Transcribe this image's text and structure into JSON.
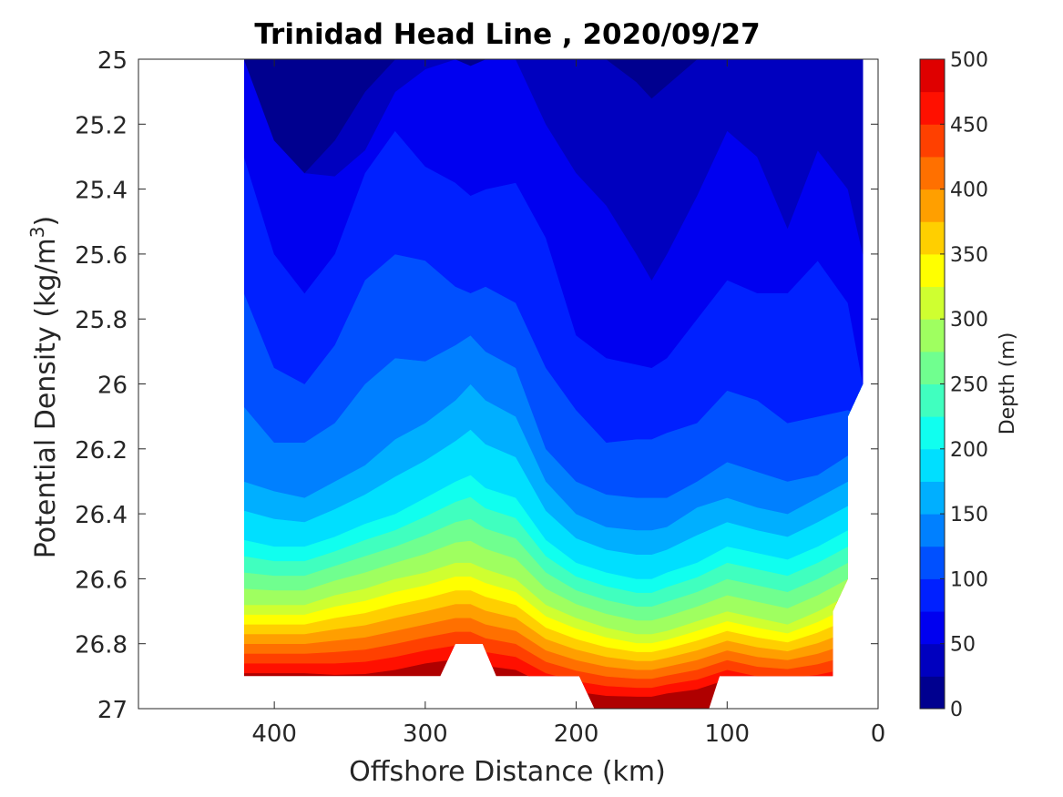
{
  "chart_data": {
    "type": "heatmap",
    "subtype": "filled-contour",
    "title": "Trinidad Head Line , 2020/09/27",
    "xlabel": "Offshore Distance (km)",
    "ylabel_main": "Potential Density (kg/m",
    "ylabel_sup": "3",
    "ylabel_close": ")",
    "colorbar_label": "Depth (m)",
    "xlim": [
      490,
      0
    ],
    "x_reversed": true,
    "ylim": [
      25,
      27
    ],
    "y_reversed": true,
    "clim": [
      0,
      500
    ],
    "contour_interval": 25,
    "x_ticks": [
      "400",
      "300",
      "200",
      "100",
      "0"
    ],
    "x_tick_values": [
      400,
      300,
      200,
      100,
      0
    ],
    "y_ticks": [
      "25",
      "25.2",
      "25.4",
      "25.6",
      "25.8",
      "26",
      "26.2",
      "26.4",
      "26.6",
      "26.8",
      "27"
    ],
    "y_tick_values": [
      25,
      25.2,
      25.4,
      25.6,
      25.8,
      26,
      26.2,
      26.4,
      26.6,
      26.8,
      27
    ],
    "colorbar_ticks": [
      "0",
      "50",
      "100",
      "150",
      "200",
      "250",
      "300",
      "350",
      "400",
      "450",
      "500"
    ],
    "colorbar_tick_values": [
      0,
      50,
      100,
      150,
      200,
      250,
      300,
      350,
      400,
      450,
      500
    ],
    "colormap": [
      "#00008f",
      "#0000bf",
      "#0000f0",
      "#0020ff",
      "#0050ff",
      "#0080ff",
      "#00afff",
      "#00dfff",
      "#10ffef",
      "#40ffbf",
      "#70ff8f",
      "#9fff60",
      "#cfff30",
      "#ffff00",
      "#ffcf00",
      "#ff9f00",
      "#ff7000",
      "#ff4000",
      "#ff1000",
      "#df0000",
      "#af0000"
    ],
    "grid": false,
    "box": true,
    "isopycnal_depth_contours": {
      "x_km": [
        420,
        400,
        380,
        360,
        340,
        320,
        300,
        280,
        270,
        260,
        240,
        220,
        200,
        180,
        160,
        150,
        140,
        120,
        100,
        80,
        60,
        40,
        20,
        10
      ],
      "depth_25": [
        {
          "level": 25,
          "density": [
            25.0,
            25.25,
            25.35,
            25.25,
            25.1,
            25.0,
            25.0,
            25.0,
            25.02,
            25.0,
            25.0,
            25.0,
            25.0,
            25.0,
            25.07,
            25.12,
            25.08,
            25.0,
            25.0,
            25.0,
            25.0,
            25.0,
            25.0,
            25.0
          ]
        },
        {
          "level": 50,
          "density": [
            25.0,
            25.1,
            25.35,
            25.36,
            25.28,
            25.1,
            25.03,
            25.0,
            25.0,
            25.0,
            25.0,
            25.2,
            25.35,
            25.45,
            25.6,
            25.68,
            25.6,
            25.42,
            25.22,
            25.3,
            25.52,
            25.28,
            25.4,
            25.6
          ]
        },
        {
          "level": 75,
          "density": [
            25.3,
            25.6,
            25.72,
            25.6,
            25.35,
            25.22,
            25.33,
            25.38,
            25.42,
            25.4,
            25.38,
            25.55,
            25.85,
            25.92,
            25.94,
            25.95,
            25.92,
            25.8,
            25.68,
            25.72,
            25.72,
            25.62,
            25.75,
            26.0
          ]
        },
        {
          "level": 100,
          "density": [
            25.72,
            25.95,
            26.0,
            25.88,
            25.68,
            25.6,
            25.62,
            25.7,
            25.72,
            25.7,
            25.75,
            25.95,
            26.08,
            26.18,
            26.17,
            26.17,
            26.15,
            26.12,
            26.02,
            26.05,
            26.12,
            26.1,
            26.08,
            26.1
          ]
        },
        {
          "level": 125,
          "density": [
            26.07,
            26.18,
            26.18,
            26.12,
            26.0,
            25.92,
            25.93,
            25.88,
            25.85,
            25.9,
            25.95,
            26.2,
            26.3,
            26.34,
            26.35,
            26.35,
            26.35,
            26.3,
            26.24,
            26.27,
            26.3,
            26.28,
            26.22,
            26.2
          ]
        },
        {
          "level": 150,
          "density": [
            26.3,
            26.33,
            26.35,
            26.3,
            26.25,
            26.17,
            26.12,
            26.05,
            26.0,
            26.05,
            26.1,
            26.3,
            26.4,
            26.44,
            26.45,
            26.45,
            26.44,
            26.38,
            26.35,
            26.38,
            26.4,
            26.35,
            26.3,
            26.3
          ]
        },
        {
          "level": 200,
          "density": [
            26.48,
            26.5,
            26.5,
            26.47,
            26.43,
            26.4,
            26.35,
            26.3,
            26.28,
            26.32,
            26.35,
            26.48,
            26.55,
            26.58,
            26.6,
            26.6,
            26.58,
            26.55,
            26.5,
            26.52,
            26.54,
            26.5,
            26.45,
            26.45
          ]
        },
        {
          "level": 300,
          "density": [
            26.68,
            26.68,
            26.68,
            26.65,
            26.63,
            26.6,
            26.58,
            26.55,
            26.55,
            26.57,
            26.6,
            26.68,
            26.72,
            26.75,
            26.77,
            26.77,
            26.76,
            26.73,
            26.7,
            26.72,
            26.74,
            26.7,
            26.65,
            26.65
          ]
        },
        {
          "level": 400,
          "density": [
            26.8,
            26.8,
            26.8,
            26.79,
            26.78,
            26.76,
            26.74,
            26.72,
            26.72,
            26.74,
            26.76,
            26.82,
            26.85,
            26.87,
            26.88,
            26.88,
            26.87,
            26.85,
            26.82,
            26.84,
            26.85,
            26.83,
            26.8,
            26.8
          ]
        }
      ]
    }
  }
}
